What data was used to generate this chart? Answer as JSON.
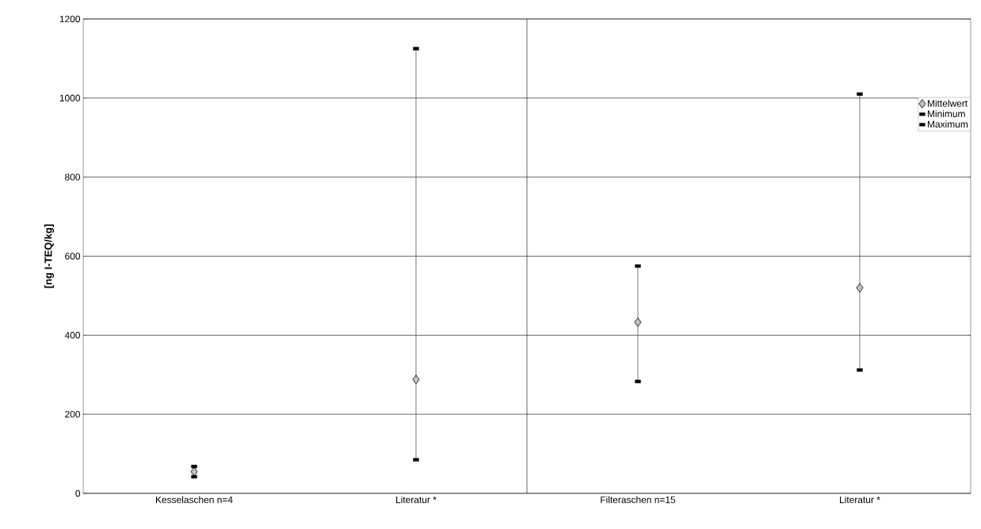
{
  "chart_data": {
    "type": "scatter",
    "ylabel": "[ng I-TEQ/kg]",
    "categories": [
      "Kesselaschen n=4",
      "Literatur *",
      "Filteraschen n=15",
      "Literatur *"
    ],
    "series": [
      {
        "name": "Mittelwert",
        "color": "#c0c0c0",
        "marker": "diamond",
        "values": [
          55,
          288,
          433,
          520
        ]
      },
      {
        "name": "Minimum",
        "color": "#000000",
        "marker": "square",
        "values": [
          42,
          85,
          283,
          312
        ]
      },
      {
        "name": "Maximum",
        "color": "#000000",
        "marker": "square",
        "values": [
          68,
          1125,
          575,
          1010
        ]
      }
    ],
    "ylim": [
      0,
      1200
    ],
    "yticks": [
      0,
      200,
      400,
      600,
      800,
      1000,
      1200
    ],
    "grid": "y",
    "legend": "top right"
  }
}
